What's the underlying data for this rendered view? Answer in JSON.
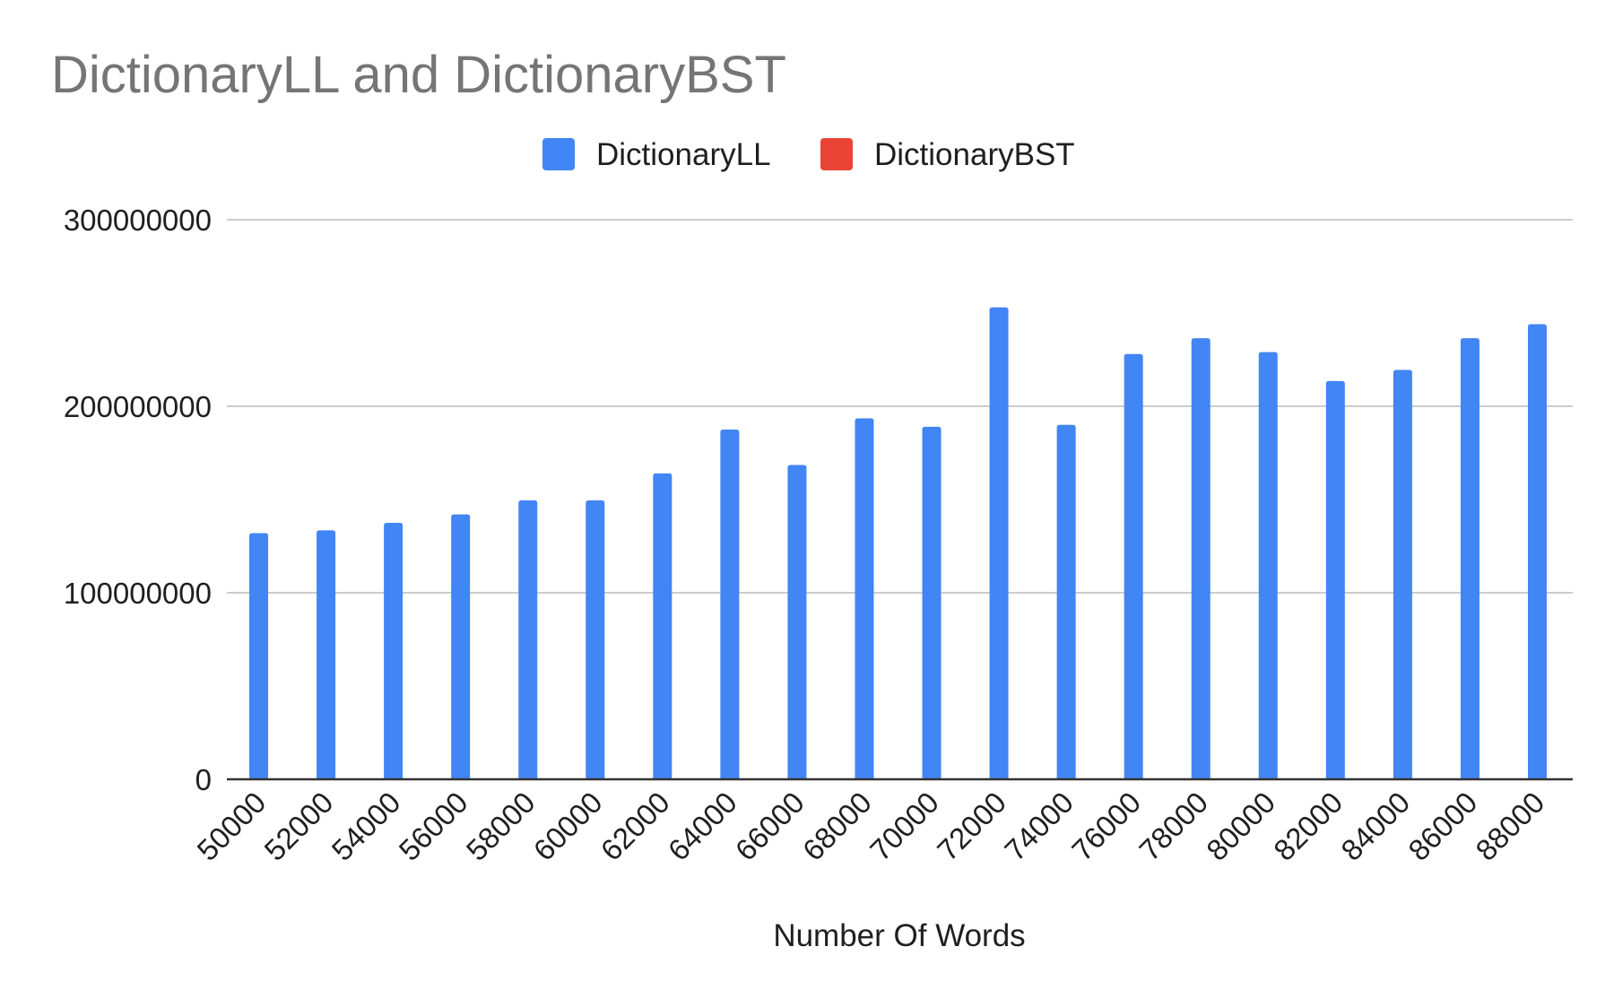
{
  "chart_data": {
    "type": "bar",
    "title": "DictionaryLL and DictionaryBST",
    "xlabel": "Number Of Words",
    "ylabel": "",
    "categories": [
      "50000",
      "52000",
      "54000",
      "56000",
      "58000",
      "60000",
      "62000",
      "64000",
      "66000",
      "68000",
      "70000",
      "72000",
      "74000",
      "76000",
      "78000",
      "80000",
      "82000",
      "84000",
      "86000",
      "88000"
    ],
    "series": [
      {
        "name": "DictionaryLL",
        "color": "#4285f4",
        "values": [
          132000000,
          133500000,
          137500000,
          142000000,
          149500000,
          149500000,
          164000000,
          187500000,
          168500000,
          193500000,
          189000000,
          253000000,
          190000000,
          228000000,
          236500000,
          229000000,
          213500000,
          219500000,
          236500000,
          244000000
        ]
      },
      {
        "name": "DictionaryBST",
        "color": "#ea4335",
        "values": [
          0,
          0,
          0,
          0,
          0,
          0,
          0,
          0,
          0,
          0,
          0,
          0,
          0,
          0,
          0,
          0,
          0,
          0,
          0,
          0
        ]
      }
    ],
    "ylim": [
      0,
      300000000
    ],
    "yticks": [
      "0",
      "100000000",
      "200000000",
      "300000000"
    ],
    "grid": true,
    "legend_position": "top-center"
  }
}
